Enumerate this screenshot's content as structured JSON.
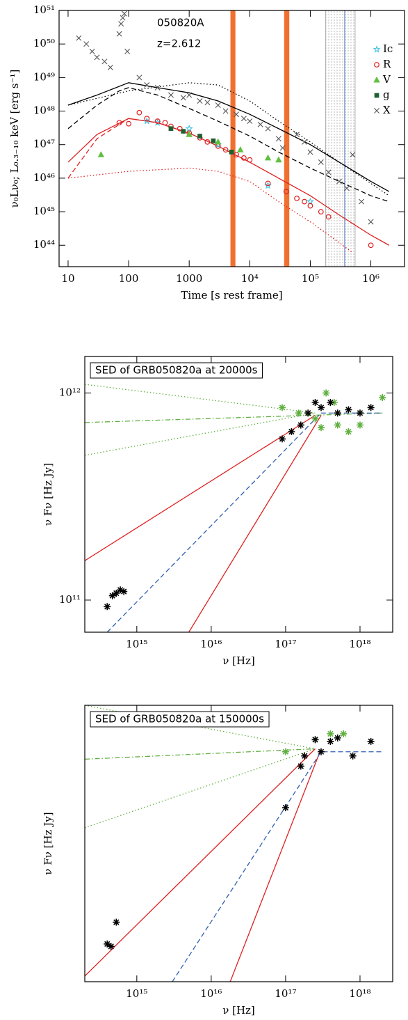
{
  "chart_data": [
    {
      "type": "scatter",
      "annotations": [
        "050820A",
        "z=2.612"
      ],
      "xlabel": "Time [s rest frame]",
      "ylabel": "ν₀Lν₀;  L₀.₃₋₁₀ keV [erg s⁻¹]",
      "xscale": "log",
      "yscale": "log",
      "xlim": [
        7.1,
        3600000
      ],
      "ylim": [
        2.3e+43,
        1e+51
      ],
      "xticks": [
        10,
        100,
        1000,
        {
          "value": 10000,
          "label": "10⁴"
        },
        {
          "value": 100000,
          "label": "10⁵"
        },
        {
          "value": 1000000,
          "label": "10⁶"
        }
      ],
      "yticks": [
        {
          "value": 1e+44,
          "label": "10⁴⁴"
        },
        {
          "value": 1e+45,
          "label": "10⁴⁵"
        },
        {
          "value": 1e+46,
          "label": "10⁴⁶"
        },
        {
          "value": 1e+47,
          "label": "10⁴⁷"
        },
        {
          "value": 1e+48,
          "label": "10⁴⁸"
        },
        {
          "value": 1e+49,
          "label": "10⁴⁹"
        },
        {
          "value": 1e+50,
          "label": "10⁵⁰"
        },
        {
          "value": 1e+51,
          "label": "10⁵¹"
        }
      ],
      "legend": "upper right",
      "regions": [
        {
          "x": [
            4800,
            5800
          ],
          "color": "#f07030"
        },
        {
          "x": [
            37000,
            45000
          ],
          "color": "#f07030"
        },
        {
          "x": [
            180000,
            550000
          ],
          "color": "#999999",
          "hatch": true
        }
      ],
      "vlines": [
        {
          "x": 370000,
          "color": "#5070c0"
        }
      ],
      "series": [
        {
          "color": "#000000",
          "line": "solid",
          "x": [
            10,
            30,
            100,
            300,
            1000,
            3000,
            10000,
            30000,
            100000,
            300000,
            1000000,
            2000000
          ],
          "values": [
            1.5e+48,
            3e+48,
            7e+48,
            5e+48,
            3.5e+48,
            2e+48,
            8e+47,
            3e+47,
            1e+47,
            3e+46,
            8e+45,
            4e+45
          ]
        },
        {
          "color": "#000000",
          "line": "dashed",
          "x": [
            10,
            30,
            70,
            100,
            300,
            1000,
            3000,
            10000,
            30000,
            100000,
            300000,
            1000000,
            2000000
          ],
          "values": [
            3e+47,
            1.5e+48,
            4e+48,
            5e+48,
            3e+48,
            1.2e+48,
            5e+47,
            1.8e+47,
            6e+46,
            2e+46,
            8e+45,
            3e+45,
            2e+45
          ]
        },
        {
          "color": "#000000",
          "line": "dotted",
          "x": [
            10,
            100,
            1000,
            3000,
            10000,
            30000,
            100000,
            300000,
            1000000,
            2000000
          ],
          "values": [
            1.5e+48,
            4e+48,
            7e+48,
            6e+48,
            2e+48,
            5e+47,
            1.2e+47,
            3e+46,
            7e+45,
            3e+45
          ]
        },
        {
          "color": "#e02020",
          "line": "solid",
          "x": [
            10,
            30,
            100,
            300,
            1000,
            3000,
            10000,
            30000,
            100000,
            300000,
            1000000,
            2000000
          ],
          "values": [
            3e+46,
            2e+47,
            6e+47,
            4.5e+47,
            2.2e+47,
            9e+46,
            3e+46,
            1e+46,
            3e+45,
            8e+44,
            2e+44,
            1e+44
          ]
        },
        {
          "color": "#e02020",
          "line": "dashed",
          "x": [
            10,
            30,
            100,
            300,
            1000
          ],
          "values": [
            1e+46,
            1.5e+47,
            6e+47,
            4.5e+47,
            2.2e+47
          ]
        },
        {
          "color": "#e02020",
          "line": "dotted",
          "x": [
            10,
            100,
            1000,
            3000,
            10000,
            30000,
            100000,
            300000,
            500000
          ],
          "values": [
            1e+46,
            1.6e+46,
            2e+46,
            1.6e+46,
            8e+45,
            2e+45,
            5e+44,
            1.2e+44,
            6e+43
          ]
        },
        {
          "name": "Ic",
          "color": "#40c0e0",
          "marker": "star",
          "x": [
            200,
            300,
            1000,
            3000,
            20000,
            100000
          ],
          "values": [
            5e+47,
            4.5e+47,
            3e+47,
            1e+47,
            6e+45,
            2e+45
          ]
        },
        {
          "name": "R",
          "color": "#e02020",
          "marker": "circle-open",
          "x": [
            70,
            100,
            150,
            200,
            300,
            400,
            500,
            700,
            1000,
            1500,
            2000,
            3000,
            4000,
            6000,
            8000,
            10000,
            20000,
            40000,
            60000,
            80000,
            100000,
            150000,
            200000,
            1000000
          ],
          "values": [
            4.5e+47,
            4.2e+47,
            9e+47,
            6e+47,
            5e+47,
            4.5e+47,
            3.5e+47,
            3e+47,
            2.2e+47,
            1.6e+47,
            1.2e+47,
            9e+46,
            7e+46,
            5e+46,
            4e+46,
            3.5e+46,
            7e+45,
            4e+45,
            2.5e+45,
            2e+45,
            1.5e+45,
            1e+45,
            7e+44,
            1e+44
          ]
        },
        {
          "name": "V",
          "color": "#60c040",
          "marker": "triangle",
          "x": [
            35,
            1000,
            3000,
            7000,
            20000,
            30000
          ],
          "values": [
            5e+46,
            2e+47,
            1.2e+47,
            7e+46,
            4e+46,
            3.5e+46
          ]
        },
        {
          "name": "g",
          "color": "#206030",
          "marker": "square",
          "x": [
            500,
            800,
            1500,
            2500,
            5000
          ],
          "values": [
            3e+47,
            2.5e+47,
            1.8e+47,
            1.3e+47,
            6e+46
          ]
        },
        {
          "name": "X",
          "color": "#555555",
          "marker": "x",
          "x": [
            15,
            20,
            25,
            30,
            40,
            50,
            70,
            75,
            80,
            85,
            95,
            150,
            200,
            300,
            500,
            800,
            1000,
            1500,
            2000,
            3000,
            4000,
            6000,
            8000,
            10000,
            15000,
            20000,
            30000,
            35000,
            60000,
            80000,
            100000,
            150000,
            200000,
            300000,
            400000,
            500000,
            700000,
            1000000
          ],
          "values": [
            1.5e+50,
            1e+50,
            6e+49,
            4e+49,
            3e+49,
            2e+49,
            2e+50,
            4e+50,
            6e+50,
            8e+50,
            6e+49,
            1e+49,
            6e+48,
            5e+48,
            3e+48,
            2.5e+48,
            3e+48,
            2e+48,
            1.8e+48,
            1.5e+48,
            1e+48,
            8e+47,
            6e+47,
            5e+47,
            4e+47,
            3e+47,
            1.5e+47,
            8e+46,
            2e+47,
            1.2e+47,
            6e+46,
            3e+46,
            1.5e+46,
            8e+45,
            5e+45,
            5e+46,
            2e+45,
            5e+44
          ]
        }
      ]
    },
    {
      "type": "scatter",
      "title": "SED of GRB050820a at 20000s",
      "xlabel": "ν [Hz]",
      "ylabel": "ν Fν [Hz Jy]",
      "xscale": "log",
      "yscale": "log",
      "xlim": [
        200000000000000.0,
        2.75e+18
      ],
      "ylim": [
        70000000000.0,
        1500000000000.0
      ],
      "xticks": [
        {
          "value": 1000000000000000.0,
          "label": "10¹⁵"
        },
        {
          "value": 1e+16,
          "label": "10¹⁶"
        },
        {
          "value": 1e+17,
          "label": "10¹⁷"
        },
        {
          "value": 1e+18,
          "label": "10¹⁸"
        }
      ],
      "yticks": [
        {
          "value": 100000000000.0,
          "label": "10¹¹"
        },
        {
          "value": 1000000000000.0,
          "label": "10¹²"
        }
      ],
      "series": [
        {
          "color": "#60b040",
          "line": "dotted",
          "x": [
            200000000000000.0,
            2.5e+17
          ],
          "values": [
            1100000000000.0,
            800000000000.0
          ]
        },
        {
          "color": "#60b040",
          "line": "dotted",
          "x": [
            200000000000000.0,
            2.5e+17
          ],
          "values": [
            500000000000.0,
            800000000000.0
          ]
        },
        {
          "color": "#60b040",
          "line": "dashdot",
          "x": [
            200000000000000.0,
            2e+18
          ],
          "values": [
            720000000000.0,
            800000000000.0
          ]
        },
        {
          "color": "#e02020",
          "line": "solid",
          "x": [
            200000000000000.0,
            2.5e+17
          ],
          "values": [
            155000000000.0,
            780000000000.0
          ]
        },
        {
          "color": "#e02020",
          "line": "solid",
          "x": [
            5000000000000000.0,
            3e+17
          ],
          "values": [
            70000000000.0,
            780000000000.0
          ]
        },
        {
          "color": "#3060b0",
          "line": "dashed",
          "x": [
            400000000000000.0,
            3e+17,
            2e+18
          ],
          "values": [
            70000000000.0,
            800000000000.0,
            800000000000.0
          ]
        },
        {
          "color": "#60b040",
          "marker": "asterisk",
          "x": [
            9e+16,
            1.5e+17,
            2.5e+17,
            3e+17,
            3.5e+17,
            4.5e+17,
            5e+17,
            7e+17,
            1e+18,
            2e+18
          ],
          "values": [
            850000000000.0,
            800000000000.0,
            750000000000.0,
            680000000000.0,
            1000000000000.0,
            900000000000.0,
            700000000000.0,
            650000000000.0,
            700000000000.0,
            950000000000.0
          ]
        },
        {
          "color": "#000000",
          "marker": "asterisk",
          "x": [
            400000000000000.0,
            470000000000000.0,
            530000000000000.0,
            600000000000000.0,
            670000000000000.0,
            9e+16,
            1.2e+17,
            1.6e+17,
            2e+17,
            2.5e+17,
            3e+17,
            4e+17,
            5e+17,
            7e+17,
            1e+18,
            1.4e+18
          ],
          "values": [
            93000000000.0,
            105000000000.0,
            108000000000.0,
            112000000000.0,
            110000000000.0,
            600000000000.0,
            650000000000.0,
            700000000000.0,
            800000000000.0,
            900000000000.0,
            850000000000.0,
            900000000000.0,
            800000000000.0,
            830000000000.0,
            800000000000.0,
            850000000000.0
          ]
        }
      ]
    },
    {
      "type": "scatter",
      "title": "SED of GRB050820a at 150000s",
      "xlabel": "ν [Hz]",
      "ylabel": "ν Fν [Hz Jy]",
      "xscale": "log",
      "yscale": "log",
      "xlim": [
        200000000000000.0,
        2.75e+18
      ],
      "ylim": [
        40000000000.0,
        1400000000000.0
      ],
      "xticks": [
        {
          "value": 1000000000000000.0,
          "label": "10¹⁵"
        },
        {
          "value": 1e+16,
          "label": "10¹⁶"
        },
        {
          "value": 1e+17,
          "label": "10¹⁷"
        },
        {
          "value": 1e+18,
          "label": "10¹⁸"
        }
      ],
      "series": [
        {
          "color": "#60b040",
          "line": "dotted",
          "x": [
            200000000000000.0,
            2.5e+17
          ],
          "values": [
            1400000000000.0,
            800000000000.0
          ]
        },
        {
          "color": "#60b040",
          "line": "dotted",
          "x": [
            200000000000000.0,
            2.5e+17
          ],
          "values": [
            290000000000.0,
            800000000000.0
          ]
        },
        {
          "color": "#60b040",
          "line": "dashdot",
          "x": [
            200000000000000.0,
            2.5e+17
          ],
          "values": [
            700000000000.0,
            800000000000.0
          ]
        },
        {
          "color": "#e02020",
          "line": "solid",
          "x": [
            200000000000000.0,
            2.5e+17
          ],
          "values": [
            43000000000.0,
            800000000000.0
          ]
        },
        {
          "color": "#e02020",
          "line": "solid",
          "x": [
            1.8e+16,
            3e+17
          ],
          "values": [
            40000000000.0,
            800000000000.0
          ]
        },
        {
          "color": "#3060b0",
          "line": "dashed",
          "x": [
            3000000000000000.0,
            3e+17,
            2e+18
          ],
          "values": [
            40000000000.0,
            770000000000.0,
            770000000000.0
          ]
        },
        {
          "color": "#60b040",
          "marker": "asterisk",
          "x": [
            1e+17,
            2.5e+17,
            4e+17,
            6e+17
          ],
          "values": [
            770000000000.0,
            900000000000.0,
            970000000000.0,
            970000000000.0
          ]
        },
        {
          "color": "#000000",
          "marker": "asterisk",
          "x": [
            400000000000000.0,
            450000000000000.0,
            530000000000000.0,
            1e+17,
            1.6e+17,
            1.8e+17,
            2.5e+17,
            3e+17,
            4e+17,
            5e+17,
            8e+17,
            1.4e+18
          ],
          "values": [
            65000000000.0,
            63000000000.0,
            86000000000.0,
            375000000000.0,
            640000000000.0,
            730000000000.0,
            900000000000.0,
            770000000000.0,
            880000000000.0,
            920000000000.0,
            730000000000.0,
            880000000000.0
          ]
        }
      ]
    }
  ]
}
